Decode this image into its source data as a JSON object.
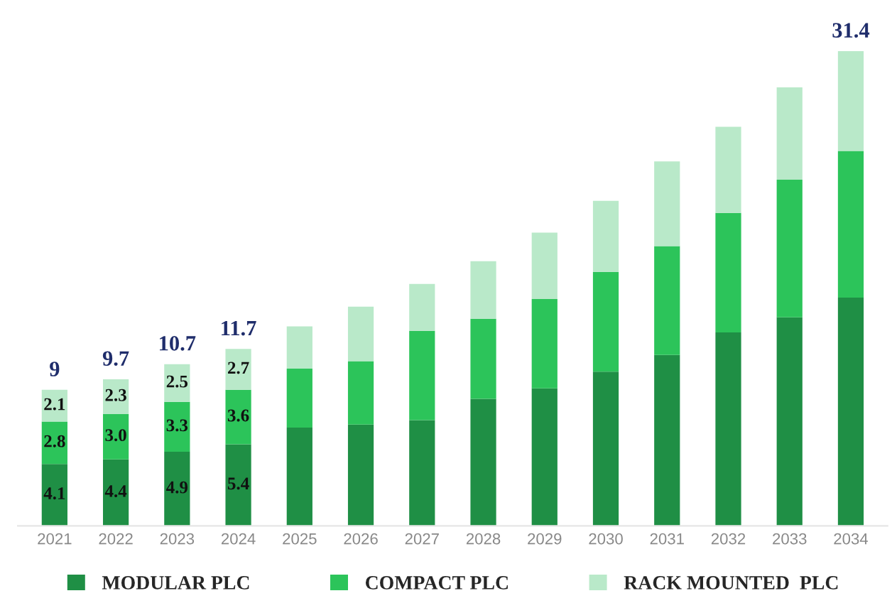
{
  "chart_data": {
    "type": "bar",
    "stacked": true,
    "categories": [
      "2021",
      "2022",
      "2023",
      "2024",
      "2025",
      "2026",
      "2027",
      "2028",
      "2029",
      "2030",
      "2031",
      "2032",
      "2033",
      "2034"
    ],
    "series": [
      {
        "name": "MODULAR PLC",
        "color": "#1f8f45",
        "values": [
          4.1,
          4.4,
          4.9,
          5.4,
          6.5,
          6.7,
          7.0,
          8.4,
          9.1,
          10.2,
          11.3,
          12.8,
          13.8,
          15.1
        ],
        "value_labels": [
          "4.1",
          "4.4",
          "4.9",
          "5.4",
          null,
          null,
          null,
          null,
          null,
          null,
          null,
          null,
          null,
          null
        ]
      },
      {
        "name": "COMPACT PLC",
        "color": "#2cc45a",
        "values": [
          2.8,
          3.0,
          3.3,
          3.6,
          3.9,
          4.2,
          5.9,
          5.3,
          5.9,
          6.6,
          7.2,
          7.9,
          9.1,
          9.7
        ],
        "value_labels": [
          "2.8",
          "3.0",
          "3.3",
          "3.6",
          null,
          null,
          null,
          null,
          null,
          null,
          null,
          null,
          null,
          null
        ]
      },
      {
        "name": "RACK MOUNTED  PLC",
        "color": "#b9e9c9",
        "values": [
          2.1,
          2.3,
          2.5,
          2.7,
          2.8,
          3.6,
          3.1,
          3.8,
          4.4,
          4.7,
          5.6,
          5.7,
          6.1,
          6.6
        ],
        "value_labels": [
          "2.1",
          "2.3",
          "2.5",
          "2.7",
          null,
          null,
          null,
          null,
          null,
          null,
          null,
          null,
          null,
          null
        ]
      }
    ],
    "totals": [
      "9",
      "9.7",
      "10.7",
      "11.7",
      null,
      null,
      null,
      null,
      null,
      null,
      null,
      null,
      null,
      "31.4"
    ],
    "tick_labels": "x",
    "legend": "bottom",
    "grid": false
  }
}
